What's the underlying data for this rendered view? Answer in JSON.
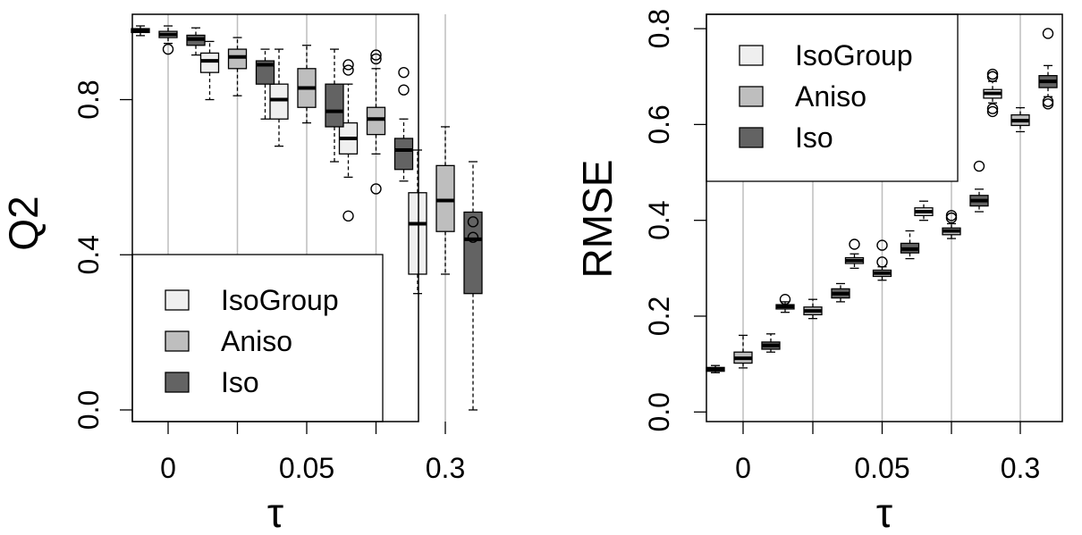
{
  "chart_data": [
    {
      "type": "box",
      "ylabel": "Q2",
      "xlabel": "τ",
      "x_tick_labels": [
        "0",
        "0.05",
        "0.3"
      ],
      "y_ticks": [
        0.0,
        0.4,
        0.8
      ],
      "y_tick_labels": [
        "0.0",
        "0.4",
        "0.8"
      ],
      "ylim": [
        -0.03,
        1.02
      ],
      "grid": "vertical",
      "legend": {
        "placement": "bottom-left",
        "entries": [
          "IsoGroup",
          "Aniso",
          "Iso"
        ]
      },
      "series_colors": {
        "IsoGroup": "#efefef",
        "Aniso": "#bebebe",
        "Iso": "#636363"
      },
      "series": [
        {
          "name": "IsoGroup",
          "boxes": [
            {
              "whislo": 0.965,
              "q1": 0.973,
              "med": 0.978,
              "q3": 0.983,
              "whishi": 0.99,
              "outliers": []
            },
            {
              "whislo": 0.8,
              "q1": 0.87,
              "med": 0.9,
              "q3": 0.92,
              "whishi": 0.95,
              "outliers": []
            },
            {
              "whislo": 0.68,
              "q1": 0.75,
              "med": 0.8,
              "q3": 0.84,
              "whishi": 0.93,
              "outliers": []
            },
            {
              "whislo": 0.6,
              "q1": 0.66,
              "med": 0.7,
              "q3": 0.74,
              "whishi": 0.84,
              "outliers": [
                0.89,
                0.876,
                0.5
              ]
            },
            {
              "whislo": 0.3,
              "q1": 0.35,
              "med": 0.48,
              "q3": 0.56,
              "whishi": 0.67,
              "outliers": []
            }
          ]
        },
        {
          "name": "Aniso",
          "boxes": [
            {
              "whislo": 0.945,
              "q1": 0.96,
              "med": 0.968,
              "q3": 0.976,
              "whishi": 0.99,
              "outliers": [
                0.93
              ]
            },
            {
              "whislo": 0.81,
              "q1": 0.88,
              "med": 0.91,
              "q3": 0.93,
              "whishi": 0.96,
              "outliers": []
            },
            {
              "whislo": 0.74,
              "q1": 0.78,
              "med": 0.83,
              "q3": 0.88,
              "whishi": 0.94,
              "outliers": []
            },
            {
              "whislo": 0.66,
              "q1": 0.71,
              "med": 0.75,
              "q3": 0.78,
              "whishi": 0.88,
              "outliers": [
                0.915,
                0.905,
                0.57
              ]
            },
            {
              "whislo": 0.35,
              "q1": 0.46,
              "med": 0.54,
              "q3": 0.63,
              "whishi": 0.73,
              "outliers": []
            }
          ]
        },
        {
          "name": "Iso",
          "boxes": [
            {
              "whislo": 0.915,
              "q1": 0.94,
              "med": 0.956,
              "q3": 0.966,
              "whishi": 0.985,
              "outliers": []
            },
            {
              "whislo": 0.75,
              "q1": 0.84,
              "med": 0.89,
              "q3": 0.9,
              "whishi": 0.93,
              "outliers": []
            },
            {
              "whislo": 0.64,
              "q1": 0.73,
              "med": 0.77,
              "q3": 0.84,
              "whishi": 0.93,
              "outliers": []
            },
            {
              "whislo": 0.59,
              "q1": 0.62,
              "med": 0.67,
              "q3": 0.7,
              "whishi": 0.75,
              "outliers": [
                0.87,
                0.825
              ]
            },
            {
              "whislo": 0.0,
              "q1": 0.3,
              "med": 0.44,
              "q3": 0.51,
              "whishi": 0.64,
              "outliers": [
                0.485,
                0.445
              ]
            }
          ]
        }
      ]
    },
    {
      "type": "box",
      "ylabel": "RMSE",
      "xlabel": "τ",
      "x_tick_labels": [
        "0",
        "0.05",
        "0.3"
      ],
      "y_ticks": [
        0.0,
        0.2,
        0.4,
        0.6,
        0.8
      ],
      "y_tick_labels": [
        "0.0",
        "0.2",
        "0.4",
        "0.6",
        "0.8"
      ],
      "ylim": [
        -0.02,
        0.83
      ],
      "grid": "vertical",
      "legend": {
        "placement": "top-left",
        "entries": [
          "IsoGroup",
          "Aniso",
          "Iso"
        ]
      },
      "series_colors": {
        "IsoGroup": "#efefef",
        "Aniso": "#bebebe",
        "Iso": "#636363"
      },
      "series": [
        {
          "name": "IsoGroup",
          "boxes": [
            {
              "whislo": 0.082,
              "q1": 0.085,
              "med": 0.089,
              "q3": 0.093,
              "whishi": 0.097,
              "outliers": []
            },
            {
              "whislo": 0.208,
              "q1": 0.215,
              "med": 0.22,
              "q3": 0.224,
              "whishi": 0.23,
              "outliers": [
                0.235
              ]
            },
            {
              "whislo": 0.3,
              "q1": 0.31,
              "med": 0.316,
              "q3": 0.322,
              "whishi": 0.33,
              "outliers": [
                0.35
              ]
            },
            {
              "whislo": 0.4,
              "q1": 0.41,
              "med": 0.418,
              "q3": 0.426,
              "whishi": 0.44,
              "outliers": []
            },
            {
              "whislo": 0.645,
              "q1": 0.655,
              "med": 0.665,
              "q3": 0.673,
              "whishi": 0.69,
              "outliers": [
                0.705,
                0.7,
                0.633,
                0.627
              ]
            }
          ]
        },
        {
          "name": "Aniso",
          "boxes": [
            {
              "whislo": 0.092,
              "q1": 0.102,
              "med": 0.112,
              "q3": 0.125,
              "whishi": 0.16,
              "outliers": []
            },
            {
              "whislo": 0.195,
              "q1": 0.203,
              "med": 0.211,
              "q3": 0.219,
              "whishi": 0.235,
              "outliers": []
            },
            {
              "whislo": 0.275,
              "q1": 0.283,
              "med": 0.29,
              "q3": 0.296,
              "whishi": 0.303,
              "outliers": [
                0.348,
                0.313
              ]
            },
            {
              "whislo": 0.362,
              "q1": 0.37,
              "med": 0.378,
              "q3": 0.384,
              "whishi": 0.393,
              "outliers": [
                0.41,
                0.405
              ]
            },
            {
              "whislo": 0.585,
              "q1": 0.598,
              "med": 0.608,
              "q3": 0.62,
              "whishi": 0.635,
              "outliers": []
            }
          ]
        },
        {
          "name": "Iso",
          "boxes": [
            {
              "whislo": 0.125,
              "q1": 0.131,
              "med": 0.139,
              "q3": 0.146,
              "whishi": 0.163,
              "outliers": []
            },
            {
              "whislo": 0.23,
              "q1": 0.238,
              "med": 0.247,
              "q3": 0.257,
              "whishi": 0.268,
              "outliers": []
            },
            {
              "whislo": 0.32,
              "q1": 0.332,
              "med": 0.34,
              "q3": 0.352,
              "whishi": 0.378,
              "outliers": []
            },
            {
              "whislo": 0.418,
              "q1": 0.43,
              "med": 0.441,
              "q3": 0.452,
              "whishi": 0.465,
              "outliers": [
                0.513
              ]
            },
            {
              "whislo": 0.658,
              "q1": 0.677,
              "med": 0.69,
              "q3": 0.702,
              "whishi": 0.723,
              "outliers": [
                0.79,
                0.643,
                0.648
              ]
            }
          ]
        }
      ]
    }
  ]
}
